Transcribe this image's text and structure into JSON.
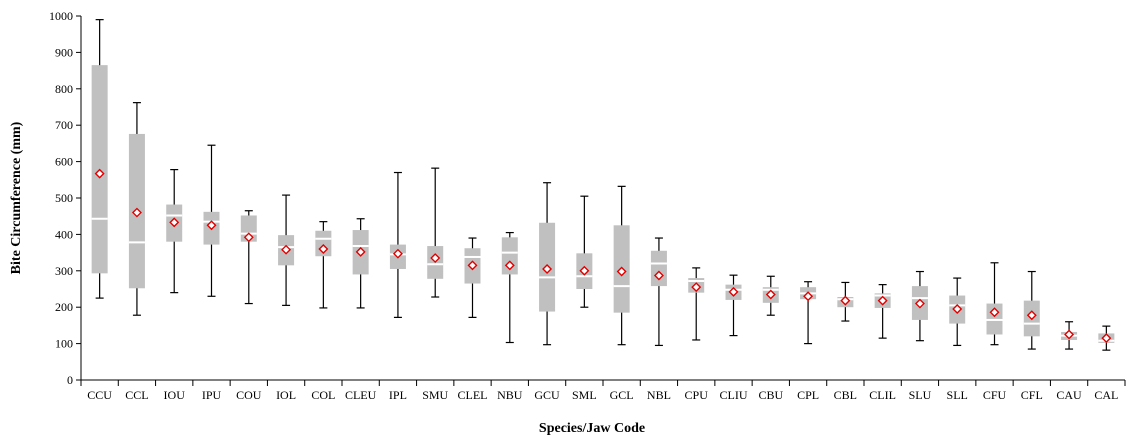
{
  "chart_data": {
    "type": "box",
    "xlabel": "Species/Jaw Code",
    "ylabel": "Bite Circumference (mm)",
    "ylim": [
      0,
      1000
    ],
    "yticks": [
      0,
      100,
      200,
      300,
      400,
      500,
      600,
      700,
      800,
      900,
      1000
    ],
    "grid": false,
    "legend": "none",
    "colors": {
      "box": "#c0c0c0",
      "median": "#ffffff",
      "mean_marker_edge": "#e00000",
      "mean_marker_fill": "#ffffff",
      "whisker": "#000000"
    },
    "categories": [
      "CCU",
      "CCL",
      "IOU",
      "IPU",
      "COU",
      "IOL",
      "COL",
      "CLEU",
      "IPL",
      "SMU",
      "CLEL",
      "NBU",
      "GCU",
      "SML",
      "GCL",
      "NBL",
      "CPU",
      "CLIU",
      "CBU",
      "CPL",
      "CBL",
      "CLIL",
      "SLU",
      "SLL",
      "CFU",
      "CFL",
      "CAU",
      "CAL"
    ],
    "boxes": [
      {
        "category": "CCU",
        "min": 225,
        "q1": 293,
        "median": 443,
        "q3": 865,
        "max": 990,
        "mean": 567
      },
      {
        "category": "CCL",
        "min": 178,
        "q1": 252,
        "median": 378,
        "q3": 676,
        "max": 762,
        "mean": 460
      },
      {
        "category": "IOU",
        "min": 240,
        "q1": 380,
        "median": 452,
        "q3": 482,
        "max": 578,
        "mean": 433
      },
      {
        "category": "IPU",
        "min": 230,
        "q1": 372,
        "median": 435,
        "q3": 462,
        "max": 645,
        "mean": 425
      },
      {
        "category": "COU",
        "min": 210,
        "q1": 380,
        "median": 402,
        "q3": 452,
        "max": 465,
        "mean": 392
      },
      {
        "category": "IOL",
        "min": 205,
        "q1": 315,
        "median": 365,
        "q3": 398,
        "max": 508,
        "mean": 358
      },
      {
        "category": "COL",
        "min": 198,
        "q1": 340,
        "median": 388,
        "q3": 410,
        "max": 435,
        "mean": 360
      },
      {
        "category": "CLEU",
        "min": 198,
        "q1": 290,
        "median": 368,
        "q3": 412,
        "max": 443,
        "mean": 352
      },
      {
        "category": "IPL",
        "min": 172,
        "q1": 305,
        "median": 345,
        "q3": 372,
        "max": 570,
        "mean": 347
      },
      {
        "category": "SMU",
        "min": 228,
        "q1": 278,
        "median": 318,
        "q3": 368,
        "max": 582,
        "mean": 335
      },
      {
        "category": "CLEL",
        "min": 172,
        "q1": 265,
        "median": 338,
        "q3": 362,
        "max": 390,
        "mean": 315
      },
      {
        "category": "NBU",
        "min": 103,
        "q1": 290,
        "median": 350,
        "q3": 392,
        "max": 405,
        "mean": 315
      },
      {
        "category": "GCU",
        "min": 97,
        "q1": 188,
        "median": 282,
        "q3": 432,
        "max": 542,
        "mean": 305
      },
      {
        "category": "SML",
        "min": 200,
        "q1": 250,
        "median": 285,
        "q3": 348,
        "max": 505,
        "mean": 300
      },
      {
        "category": "GCL",
        "min": 97,
        "q1": 185,
        "median": 258,
        "q3": 425,
        "max": 532,
        "mean": 298
      },
      {
        "category": "NBL",
        "min": 95,
        "q1": 258,
        "median": 320,
        "q3": 355,
        "max": 390,
        "mean": 287
      },
      {
        "category": "CPU",
        "min": 110,
        "q1": 240,
        "median": 272,
        "q3": 280,
        "max": 308,
        "mean": 255
      },
      {
        "category": "CLIU",
        "min": 122,
        "q1": 220,
        "median": 248,
        "q3": 262,
        "max": 288,
        "mean": 242
      },
      {
        "category": "CBU",
        "min": 178,
        "q1": 212,
        "median": 248,
        "q3": 255,
        "max": 285,
        "mean": 235
      },
      {
        "category": "CPL",
        "min": 100,
        "q1": 222,
        "median": 238,
        "q3": 255,
        "max": 270,
        "mean": 230
      },
      {
        "category": "CBL",
        "min": 162,
        "q1": 200,
        "median": 222,
        "q3": 228,
        "max": 268,
        "mean": 218
      },
      {
        "category": "CLIL",
        "min": 115,
        "q1": 198,
        "median": 232,
        "q3": 238,
        "max": 262,
        "mean": 218
      },
      {
        "category": "SLU",
        "min": 108,
        "q1": 165,
        "median": 225,
        "q3": 258,
        "max": 298,
        "mean": 210
      },
      {
        "category": "SLL",
        "min": 95,
        "q1": 155,
        "median": 205,
        "q3": 232,
        "max": 280,
        "mean": 195
      },
      {
        "category": "CFU",
        "min": 97,
        "q1": 125,
        "median": 165,
        "q3": 210,
        "max": 322,
        "mean": 186
      },
      {
        "category": "CFL",
        "min": 85,
        "q1": 120,
        "median": 155,
        "q3": 218,
        "max": 298,
        "mean": 178
      },
      {
        "category": "CAU",
        "min": 85,
        "q1": 110,
        "median": 122,
        "q3": 132,
        "max": 160,
        "mean": 125
      },
      {
        "category": "CAL",
        "min": 82,
        "q1": 102,
        "median": 108,
        "q3": 128,
        "max": 148,
        "mean": 115
      }
    ]
  }
}
